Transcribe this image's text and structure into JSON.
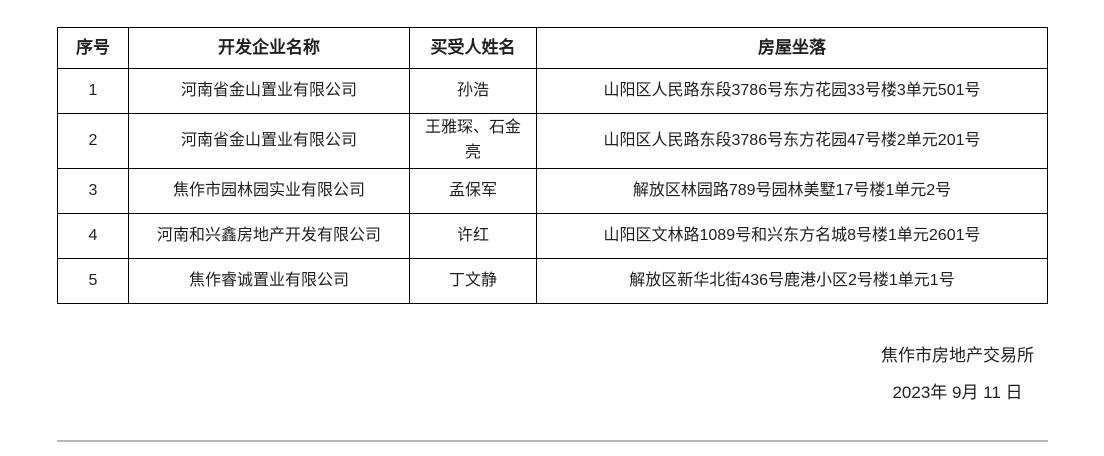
{
  "table": {
    "headers": {
      "serial": "序号",
      "developer": "开发企业名称",
      "buyer": "买受人姓名",
      "address": "房屋坐落"
    },
    "rows": [
      {
        "serial": "1",
        "developer": "河南省金山置业有限公司",
        "buyer": "孙浩",
        "address": "山阳区人民路东段3786号东方花园33号楼3单元501号"
      },
      {
        "serial": "2",
        "developer": "河南省金山置业有限公司",
        "buyer": "王雅琛、石金亮",
        "address": "山阳区人民路东段3786号东方花园47号楼2单元201号"
      },
      {
        "serial": "3",
        "developer": "焦作市园林园实业有限公司",
        "buyer": "孟保军",
        "address": "解放区林园路789号园林美墅17号楼1单元2号"
      },
      {
        "serial": "4",
        "developer": "河南和兴鑫房地产开发有限公司",
        "buyer": "许红",
        "address": "山阳区文林路1089号和兴东方名城8号楼1单元2601号"
      },
      {
        "serial": "5",
        "developer": "焦作睿诚置业有限公司",
        "buyer": "丁文静",
        "address": "解放区新华北街436号鹿港小区2号楼1单元1号"
      }
    ]
  },
  "footer": {
    "organization": "焦作市房地产交易所",
    "date": "2023年 9月 11 日"
  },
  "colors": {
    "background": "#ffffff",
    "table_border": "#000000",
    "text": "#1f1f1f",
    "divider": "#b9b9b9"
  }
}
